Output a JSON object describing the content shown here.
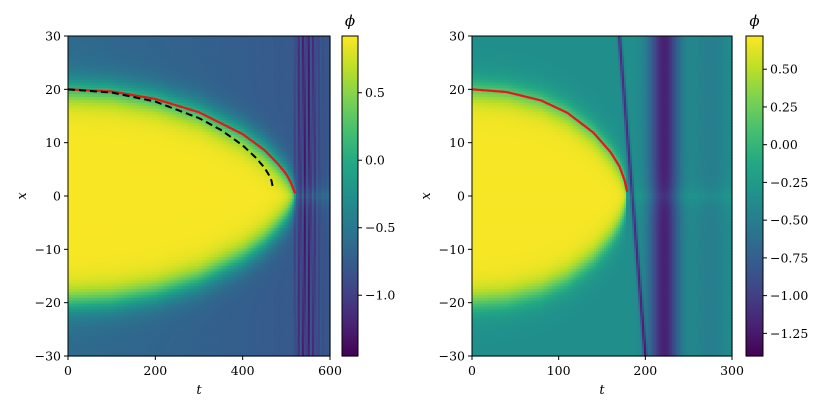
{
  "chart_data": [
    {
      "type": "heatmap",
      "title": "",
      "xlabel": "t",
      "ylabel": "x",
      "xlim": [
        0,
        600
      ],
      "ylim": [
        -30,
        30
      ],
      "xticks": [
        "0",
        "200",
        "400",
        "600"
      ],
      "yticks": [
        "30",
        "20",
        "10",
        "0",
        "−10",
        "−20",
        "−30"
      ],
      "colorbar": {
        "label": "ϕ",
        "range": [
          -1.45,
          0.92
        ],
        "ticks": [
          "0.5",
          "0.0",
          "−0.5",
          "−1.0"
        ],
        "colormap": "viridis"
      },
      "field": {
        "description_free": true,
        "droplet_front_radius_at_t0": 20,
        "collapse_time": 520,
        "outer_level": -0.62,
        "inner_level": 0.9
      },
      "series": [
        {
          "style": "solid",
          "color": "#e8161b",
          "points": [
            [
              0,
              20
            ],
            [
              100,
              19.6
            ],
            [
              200,
              18.2
            ],
            [
              300,
              15.7
            ],
            [
              400,
              11.6
            ],
            [
              450,
              8.6
            ],
            [
              480,
              6.1
            ],
            [
              500,
              4.1
            ],
            [
              510,
              2.6
            ],
            [
              520,
              0.5
            ]
          ]
        },
        {
          "style": "dashed",
          "color": "#000000",
          "points": [
            [
              0,
              20
            ],
            [
              100,
              19.4
            ],
            [
              200,
              17.7
            ],
            [
              300,
              14.6
            ],
            [
              350,
              12.4
            ],
            [
              400,
              9.5
            ],
            [
              430,
              7.2
            ],
            [
              450,
              5.3
            ],
            [
              465,
              3.3
            ],
            [
              470,
              1.2
            ]
          ]
        }
      ]
    },
    {
      "type": "heatmap",
      "title": "",
      "xlabel": "t",
      "ylabel": "x",
      "xlim": [
        0,
        300
      ],
      "ylim": [
        -30,
        30
      ],
      "xticks": [
        "0",
        "100",
        "200",
        "300"
      ],
      "yticks": [
        "30",
        "20",
        "10",
        "0",
        "−10",
        "−20",
        "−30"
      ],
      "colorbar": {
        "label": "ϕ",
        "range": [
          -1.4,
          0.72
        ],
        "ticks": [
          "0.50",
          "0.25",
          "0.00",
          "−0.25",
          "−0.50",
          "−0.75",
          "−1.00",
          "−1.25"
        ],
        "colormap": "viridis"
      },
      "field": {
        "droplet_front_radius_at_t0": 20,
        "collapse_time": 178,
        "outer_level": -0.35,
        "inner_level": 0.7
      },
      "series": [
        {
          "style": "solid",
          "color": "#e8161b",
          "points": [
            [
              0,
              20
            ],
            [
              40,
              19.5
            ],
            [
              80,
              17.9
            ],
            [
              110,
              15.6
            ],
            [
              140,
              11.9
            ],
            [
              160,
              8.2
            ],
            [
              170,
              5.6
            ],
            [
              176,
              3.0
            ],
            [
              179,
              0.8
            ]
          ]
        }
      ]
    }
  ]
}
